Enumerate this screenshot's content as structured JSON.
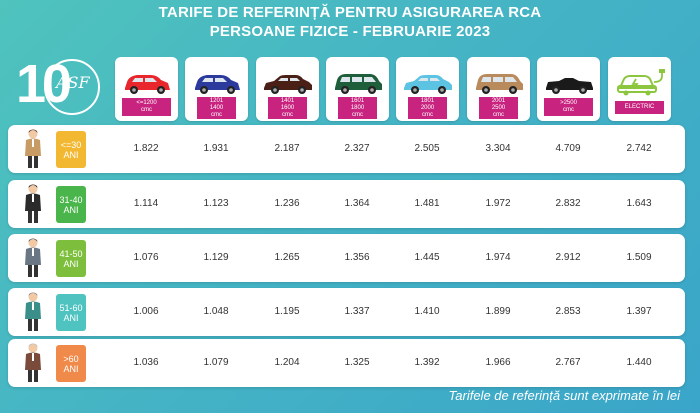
{
  "header": {
    "title_line1": "TARIFE DE REFERINȚĂ PENTRU ASIGURAREA RCA",
    "title_line2": "PERSOANE FIZICE - FEBRUARIE 2023"
  },
  "logo": {
    "text": "10",
    "monogram": "ASF"
  },
  "columns": [
    {
      "line1": "<=1200",
      "line2": "cmc",
      "car_color": "#e8262c",
      "car_icon": "hatchback-car-icon"
    },
    {
      "line1": "1201",
      "line2": "1400",
      "line3": "cmc",
      "car_color": "#2c3a9e",
      "car_icon": "hatchback-car-icon"
    },
    {
      "line1": "1401",
      "line2": "1600",
      "line3": "cmc",
      "car_color": "#4a1f16",
      "car_icon": "sedan-car-icon"
    },
    {
      "line1": "1601",
      "line2": "1800",
      "line3": "cmc",
      "car_color": "#1f5e3a",
      "car_icon": "minivan-car-icon"
    },
    {
      "line1": "1801",
      "line2": "2000",
      "line3": "cmc",
      "car_color": "#5dc3e3",
      "car_icon": "sedan-car-icon"
    },
    {
      "line1": "2001",
      "line2": "2500",
      "line3": "cmc",
      "car_color": "#b98a5c",
      "car_icon": "suv-car-icon"
    },
    {
      "line1": ">2500",
      "line2": "cmc",
      "car_color": "#1a1a1a",
      "car_icon": "convertible-car-icon"
    },
    {
      "line1": "ELECTRIC",
      "car_color": "#8cc63f",
      "car_icon": "electric-car-icon"
    }
  ],
  "rows": [
    {
      "age_line1": "<=30",
      "age_line2": "ANI",
      "badge_color": "#f3b832",
      "values": [
        "1.822",
        "1.931",
        "2.187",
        "2.327",
        "2.505",
        "3.304",
        "4.709",
        "2.742"
      ]
    },
    {
      "age_line1": "31-40",
      "age_line2": "ANI",
      "badge_color": "#4ab54a",
      "values": [
        "1.114",
        "1.123",
        "1.236",
        "1.364",
        "1.481",
        "1.972",
        "2.832",
        "1.643"
      ]
    },
    {
      "age_line1": "41-50",
      "age_line2": "ANI",
      "badge_color": "#7dbf3c",
      "values": [
        "1.076",
        "1.129",
        "1.265",
        "1.356",
        "1.445",
        "1.974",
        "2.912",
        "1.509"
      ]
    },
    {
      "age_line1": "51-60",
      "age_line2": "ANI",
      "badge_color": "#4ec3c0",
      "values": [
        "1.006",
        "1.048",
        "1.195",
        "1.337",
        "1.410",
        "1.899",
        "2.853",
        "1.397"
      ]
    },
    {
      "age_line1": ">60",
      "age_line2": "ANI",
      "badge_color": "#f08a4b",
      "values": [
        "1.036",
        "1.079",
        "1.204",
        "1.325",
        "1.392",
        "1.966",
        "2.767",
        "1.440"
      ]
    }
  ],
  "footer": {
    "note": "Tarifele de referință sunt exprimate în lei"
  }
}
